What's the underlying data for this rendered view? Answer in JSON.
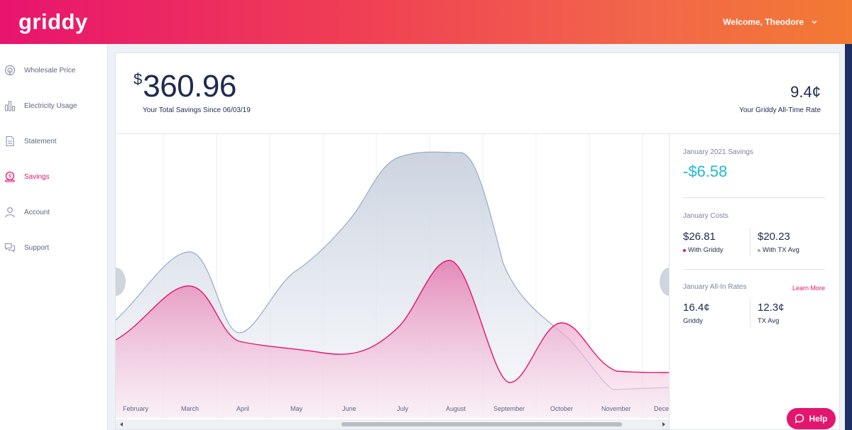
{
  "header": {
    "logo": "griddy",
    "welcome": "Welcome, Theodore"
  },
  "sidebar": {
    "items": [
      {
        "label": "Wholesale Price",
        "icon": "wholesale-price-icon",
        "active": false
      },
      {
        "label": "Electricity Usage",
        "icon": "bar-chart-icon",
        "active": false
      },
      {
        "label": "Statement",
        "icon": "document-icon",
        "active": false
      },
      {
        "label": "Savings",
        "icon": "piggy-bank-icon",
        "active": true
      },
      {
        "label": "Account",
        "icon": "user-icon",
        "active": false
      },
      {
        "label": "Support",
        "icon": "chat-bubbles-icon",
        "active": false
      }
    ]
  },
  "summary": {
    "currency_symbol": "$",
    "total_savings": "360.96",
    "savings_since": "Your Total Savings Since 06/03/19",
    "all_time_rate": "9.4¢",
    "all_time_rate_label": "Your Griddy All-Time Rate"
  },
  "chart": {
    "months": [
      "February",
      "March",
      "April",
      "May",
      "June",
      "July",
      "August",
      "September",
      "October",
      "November",
      "Dece"
    ],
    "colors": {
      "tx_avg_line": "#9aabc7",
      "griddy_line": "#e3166f"
    }
  },
  "details": {
    "month_savings_label": "January 2021 Savings",
    "month_savings_value": "-$6.58",
    "costs_label": "January Costs",
    "griddy_cost": "$26.81",
    "griddy_cost_label": "With Griddy",
    "tx_cost": "$20.23",
    "tx_cost_label": "With TX Avg",
    "rates_label": "January All-In Rates",
    "learn_more": "Learn More",
    "griddy_rate": "16.4¢",
    "griddy_rate_label": "Griddy",
    "tx_rate": "12.3¢",
    "tx_rate_label": "TX Avg"
  },
  "help": {
    "label": "Help"
  },
  "colors": {
    "brand_pink": "#e3166f",
    "brand_orange": "#f27a33",
    "savings_teal": "#22b8cf",
    "navy_text": "#1d2b4f"
  }
}
